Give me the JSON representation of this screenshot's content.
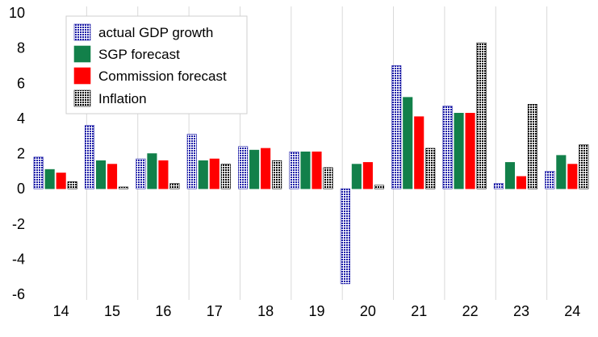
{
  "chart_data": {
    "type": "bar",
    "categories": [
      "14",
      "15",
      "16",
      "17",
      "18",
      "19",
      "20",
      "21",
      "22",
      "23",
      "24"
    ],
    "series": [
      {
        "name": "actual GDP growth",
        "color": "#1a1aa6",
        "pattern": "dotted-navy",
        "values": [
          1.8,
          3.6,
          1.7,
          3.1,
          2.4,
          2.1,
          -5.4,
          7.0,
          4.7,
          0.3,
          1.0
        ]
      },
      {
        "name": "SGP forecast",
        "color": "#12804a",
        "pattern": "solid",
        "values": [
          1.1,
          1.6,
          2.0,
          1.6,
          2.2,
          2.1,
          1.4,
          5.2,
          4.3,
          1.5,
          1.9
        ]
      },
      {
        "name": "Commission forecast",
        "color": "#ff0000",
        "pattern": "solid",
        "values": [
          0.9,
          1.4,
          1.6,
          1.7,
          2.3,
          2.1,
          1.5,
          4.1,
          4.3,
          0.7,
          1.4
        ]
      },
      {
        "name": "Inflation",
        "color": "#000000",
        "pattern": "dotted-black",
        "values": [
          0.4,
          0.1,
          0.3,
          1.4,
          1.6,
          1.2,
          0.2,
          2.3,
          8.3,
          4.8,
          2.5
        ]
      }
    ],
    "title": "",
    "xlabel": "",
    "ylabel": "",
    "ylim": [
      -6,
      10
    ],
    "yticks": [
      -6,
      -4,
      -2,
      0,
      2,
      4,
      6,
      8,
      10
    ],
    "grid": "vertical separators between categories",
    "legend": "top-left"
  }
}
